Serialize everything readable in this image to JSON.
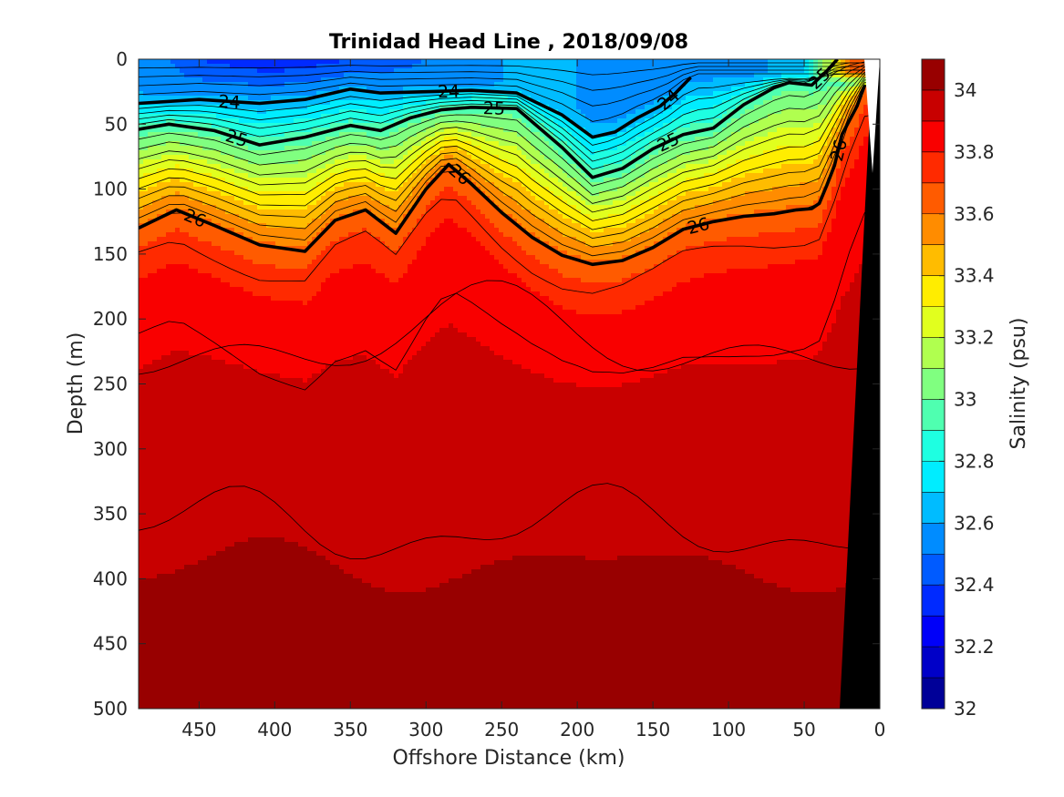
{
  "chart_data": {
    "type": "heatmap",
    "title": "Trinidad Head Line , 2018/09/08",
    "xlabel": "Offshore Distance (km)",
    "ylabel": "Depth (m)",
    "colorbar_label": "Salinity (psu)",
    "xlim": [
      490,
      0
    ],
    "ylim": [
      0,
      500
    ],
    "y_reversed": true,
    "x_reversed": true,
    "x_ticks": [
      450,
      400,
      350,
      300,
      250,
      200,
      150,
      100,
      50,
      0
    ],
    "y_ticks": [
      0,
      50,
      100,
      150,
      200,
      250,
      300,
      350,
      400,
      450,
      500
    ],
    "colorbar": {
      "min": 32,
      "max": 34.1,
      "step": 0.1,
      "tick_values": [
        32,
        32.2,
        32.4,
        32.6,
        32.8,
        33,
        33.2,
        33.4,
        33.6,
        33.8,
        34
      ],
      "tick_labels": [
        "32",
        "32.2",
        "32.4",
        "32.6",
        "32.8",
        "33",
        "33.2",
        "33.4",
        "33.6",
        "33.8",
        "34"
      ]
    },
    "salinity_profile_x_km": [
      490,
      450,
      400,
      350,
      300,
      250,
      200,
      150,
      100,
      50,
      20
    ],
    "salinity_surface_psu": [
      32.6,
      32.4,
      32.3,
      32.4,
      32.5,
      32.6,
      32.6,
      32.5,
      32.5,
      32.7,
      33.6
    ],
    "density_contours": [
      {
        "label": "24",
        "bold": true,
        "x": [
          490,
          450,
          410,
          380,
          350,
          330,
          300,
          270,
          240,
          210,
          190,
          175,
          160,
          145,
          135,
          125
        ],
        "depth": [
          34,
          31,
          34,
          31,
          23,
          26,
          25,
          24,
          26,
          43,
          60,
          56,
          45,
          36,
          26,
          14
        ]
      },
      {
        "label": "25",
        "bold": true,
        "x": [
          490,
          470,
          440,
          410,
          380,
          350,
          330,
          310,
          290,
          270,
          240,
          210,
          190,
          170,
          150,
          130,
          110,
          90,
          70,
          60,
          45,
          35,
          28
        ],
        "depth": [
          54,
          50,
          55,
          66,
          60,
          51,
          55,
          45,
          39,
          37,
          38,
          68,
          91,
          84,
          69,
          58,
          53,
          35,
          22,
          18,
          20,
          9,
          0
        ]
      },
      {
        "label": "26",
        "bold": true,
        "x": [
          490,
          465,
          440,
          410,
          380,
          360,
          340,
          320,
          300,
          285,
          270,
          250,
          230,
          210,
          190,
          170,
          150,
          130,
          110,
          90,
          70,
          55,
          45,
          40,
          35,
          30,
          25,
          15,
          10
        ],
        "depth": [
          130,
          116,
          128,
          143,
          148,
          124,
          116,
          134,
          100,
          81,
          96,
          118,
          137,
          151,
          158,
          155,
          145,
          131,
          125,
          121,
          119,
          116,
          115,
          111,
          97,
          82,
          58,
          36,
          20
        ]
      }
    ]
  }
}
